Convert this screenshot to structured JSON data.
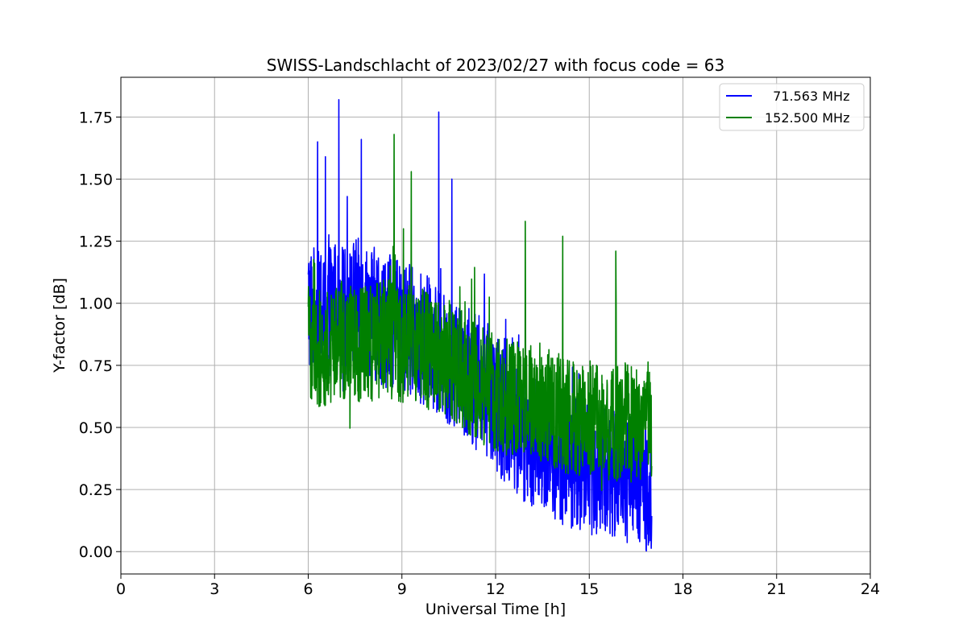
{
  "chart_data": {
    "type": "line",
    "title": "SWISS-Landschlacht of 2023/02/27 with focus code = 63",
    "xlabel": "Universal Time [h]",
    "ylabel": "Y-factor [dB]",
    "xlim": [
      0,
      24
    ],
    "ylim": [
      -0.09,
      1.91
    ],
    "xticks": [
      0,
      3,
      6,
      9,
      12,
      15,
      18,
      21,
      24
    ],
    "xtick_labels": [
      "0",
      "3",
      "6",
      "9",
      "12",
      "15",
      "18",
      "21",
      "24"
    ],
    "yticks": [
      0.0,
      0.25,
      0.5,
      0.75,
      1.0,
      1.25,
      1.5,
      1.75
    ],
    "ytick_labels": [
      "0.00",
      "0.25",
      "0.50",
      "0.75",
      "1.00",
      "1.25",
      "1.50",
      "1.75"
    ],
    "grid": true,
    "legend_position": "top-right",
    "series": [
      {
        "name": "  71.563 MHz",
        "color": "#0000ff",
        "x": [
          6.0,
          6.25,
          6.5,
          6.75,
          7.0,
          7.25,
          7.5,
          7.75,
          8.0,
          8.25,
          8.5,
          8.75,
          9.0,
          9.25,
          9.5,
          9.75,
          10.0,
          10.25,
          10.5,
          10.75,
          11.0,
          11.25,
          11.5,
          11.75,
          12.0,
          12.25,
          12.5,
          12.75,
          13.0,
          13.25,
          13.5,
          13.75,
          14.0,
          14.25,
          14.5,
          14.75,
          15.0,
          15.25,
          15.5,
          15.75,
          16.0,
          16.25,
          16.5,
          16.75,
          17.0
        ],
        "y": [
          1.0,
          0.95,
          0.92,
          1.0,
          0.97,
          0.95,
          1.0,
          0.98,
          0.97,
          0.95,
          0.93,
          0.92,
          0.88,
          0.9,
          0.87,
          0.85,
          0.82,
          0.8,
          0.78,
          0.75,
          0.73,
          0.7,
          0.68,
          0.65,
          0.6,
          0.55,
          0.5,
          0.48,
          0.46,
          0.44,
          0.42,
          0.4,
          0.38,
          0.37,
          0.36,
          0.35,
          0.34,
          0.33,
          0.33,
          0.32,
          0.31,
          0.3,
          0.3,
          0.28,
          0.25
        ],
        "peaks": [
          [
            6.3,
            1.65
          ],
          [
            6.55,
            1.59
          ],
          [
            6.98,
            1.82
          ],
          [
            7.25,
            1.43
          ],
          [
            7.7,
            1.66
          ],
          [
            10.18,
            1.77
          ],
          [
            10.6,
            1.5
          ]
        ],
        "spread": 0.27
      },
      {
        "name": "152.500 MHz",
        "color": "#008000",
        "x": [
          6.0,
          6.25,
          6.5,
          6.75,
          7.0,
          7.25,
          7.5,
          7.75,
          8.0,
          8.25,
          8.5,
          8.75,
          9.0,
          9.25,
          9.5,
          9.75,
          10.0,
          10.25,
          10.5,
          10.75,
          11.0,
          11.25,
          11.5,
          11.75,
          12.0,
          12.25,
          12.5,
          12.75,
          13.0,
          13.25,
          13.5,
          13.75,
          14.0,
          14.25,
          14.5,
          14.75,
          15.0,
          15.25,
          15.5,
          15.75,
          16.0,
          16.25,
          16.5,
          16.75,
          17.0
        ],
        "y": [
          0.85,
          0.82,
          0.8,
          0.82,
          0.85,
          0.84,
          0.82,
          0.83,
          0.84,
          0.85,
          0.86,
          0.85,
          0.84,
          0.84,
          0.83,
          0.82,
          0.8,
          0.79,
          0.78,
          0.75,
          0.72,
          0.7,
          0.68,
          0.66,
          0.64,
          0.63,
          0.62,
          0.62,
          0.61,
          0.6,
          0.6,
          0.58,
          0.57,
          0.55,
          0.55,
          0.54,
          0.53,
          0.53,
          0.52,
          0.52,
          0.52,
          0.52,
          0.5,
          0.5,
          0.5
        ],
        "peaks": [
          [
            8.75,
            1.68
          ],
          [
            9.3,
            1.53
          ],
          [
            9.05,
            1.3
          ],
          [
            12.95,
            1.33
          ],
          [
            14.15,
            1.27
          ],
          [
            15.85,
            1.21
          ]
        ],
        "spread": 0.24
      }
    ]
  }
}
